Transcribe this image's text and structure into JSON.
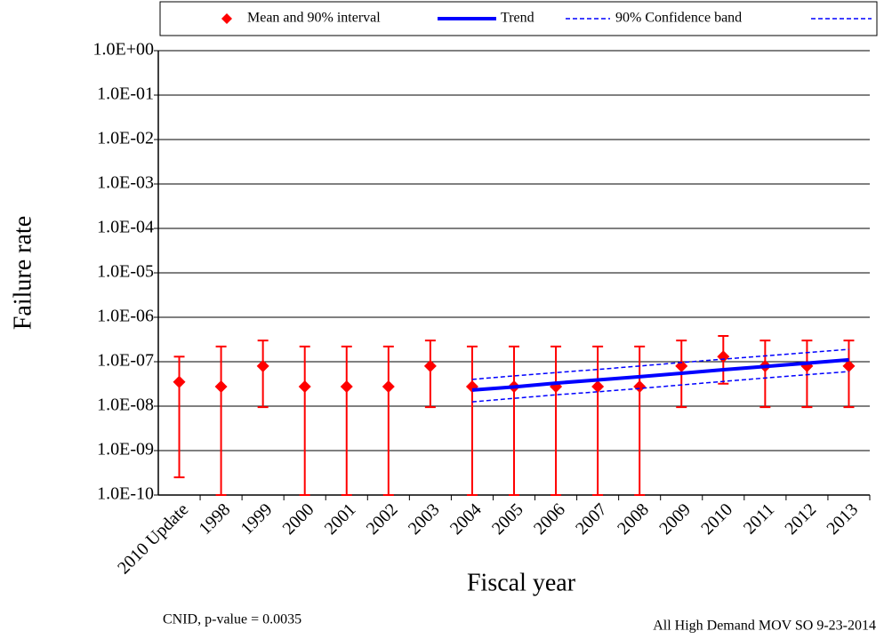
{
  "chart_data": {
    "type": "line",
    "yscale": "log",
    "x_label": "Fiscal year",
    "y_label": "Failure rate",
    "footnote_left": "CNID, p-value = 0.0035",
    "footnote_right": "All High Demand MOV SO 9-23-2014",
    "categories": [
      "2010 Update",
      "1998",
      "1999",
      "2000",
      "2001",
      "2002",
      "2003",
      "2004",
      "2005",
      "2006",
      "2007",
      "2008",
      "2009",
      "2010",
      "2011",
      "2012",
      "2013"
    ],
    "series": [
      {
        "name": "Mean and 90% interval",
        "color": "#ff0000",
        "marker": "diamond",
        "values": [
          3.5e-08,
          2.75e-08,
          8e-08,
          2.75e-08,
          2.75e-08,
          2.75e-08,
          8e-08,
          2.75e-08,
          2.75e-08,
          2.75e-08,
          2.75e-08,
          2.75e-08,
          8e-08,
          1.3e-07,
          8e-08,
          8e-08,
          8e-08
        ],
        "lower": [
          2.5e-10,
          1e-10,
          9.5e-09,
          1e-10,
          1e-10,
          1e-10,
          9.5e-09,
          1e-10,
          1e-10,
          1e-10,
          1e-10,
          1e-10,
          9.5e-09,
          3.2e-08,
          9.5e-09,
          9.5e-09,
          9.5e-09
        ],
        "upper": [
          1.3e-07,
          2.2e-07,
          3e-07,
          2.2e-07,
          2.2e-07,
          2.2e-07,
          3e-07,
          2.2e-07,
          2.2e-07,
          2.2e-07,
          2.2e-07,
          2.2e-07,
          3e-07,
          3.8e-07,
          3e-07,
          3e-07,
          3e-07
        ]
      },
      {
        "name": "Trend",
        "color": "#0000ff",
        "values": [
          null,
          null,
          null,
          null,
          null,
          null,
          null,
          2.3e-08,
          2.7e-08,
          3.3e-08,
          3.9e-08,
          4.6e-08,
          5.5e-08,
          6.6e-08,
          7.8e-08,
          9.3e-08,
          1.1e-07
        ]
      },
      {
        "name": "90% Confidence band",
        "color": "#0000ff",
        "upper": [
          null,
          null,
          null,
          null,
          null,
          null,
          null,
          4e-08,
          4.8e-08,
          5.7e-08,
          6.7e-08,
          8e-08,
          9.6e-08,
          1.14e-07,
          1.35e-07,
          1.6e-07,
          1.9e-07
        ],
        "lower": [
          null,
          null,
          null,
          null,
          null,
          null,
          null,
          1.25e-08,
          1.5e-08,
          1.8e-08,
          2.1e-08,
          2.5e-08,
          3e-08,
          3.6e-08,
          4.3e-08,
          5.1e-08,
          6e-08
        ]
      }
    ],
    "ylim": [
      1e-10,
      1
    ],
    "yticks": [
      {
        "value": 1e-10,
        "label": "1.0E-10"
      },
      {
        "value": 1e-09,
        "label": "1.0E-09"
      },
      {
        "value": 1e-08,
        "label": "1.0E-08"
      },
      {
        "value": 1e-07,
        "label": "1.0E-07"
      },
      {
        "value": 1e-06,
        "label": "1.0E-06"
      },
      {
        "value": 1e-05,
        "label": "1.0E-05"
      },
      {
        "value": 0.0001,
        "label": "1.0E-04"
      },
      {
        "value": 0.001,
        "label": "1.0E-03"
      },
      {
        "value": 0.01,
        "label": "1.0E-02"
      },
      {
        "value": 0.1,
        "label": "1.0E-01"
      },
      {
        "value": 1,
        "label": "1.0E+00"
      }
    ],
    "grid": true,
    "legend": "top"
  }
}
